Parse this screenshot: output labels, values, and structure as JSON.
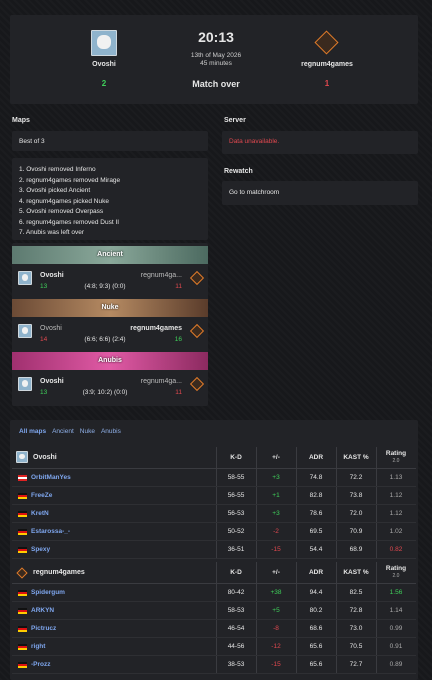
{
  "header": {
    "team1": "Ovoshi",
    "score1": "2",
    "time": "20:13",
    "date": "13th of May 2026",
    "duration": "45 minutes",
    "status": "Match over",
    "team2": "regnum4games",
    "score2": "1"
  },
  "maps": {
    "title": "Maps",
    "best_of": "Best of 3",
    "veto": [
      "1. Ovoshi removed Inferno",
      "2. regnum4games removed Mirage",
      "3. Ovoshi picked Ancient",
      "4. regnum4games picked Nuke",
      "5. Ovoshi removed Overpass",
      "6. regnum4games removed Dust II",
      "7. Anubis was left over"
    ],
    "results": [
      {
        "map": "Ancient",
        "team1": "Ovoshi",
        "score1": "13",
        "detail": "(4:8; 9:3) (0:0)",
        "team2": "regnum4ga...",
        "score2": "11"
      },
      {
        "map": "Nuke",
        "team1": "Ovoshi",
        "score1": "14",
        "detail": "(6:6; 6:6) (2:4)",
        "team2": "regnum4games",
        "score2": "16"
      },
      {
        "map": "Anubis",
        "team1": "Ovoshi",
        "score1": "13",
        "detail": "(3:9; 10:2) (0:0)",
        "team2": "regnum4ga...",
        "score2": "11"
      }
    ]
  },
  "server": {
    "title": "Server",
    "message": "Data unavailable."
  },
  "rewatch": {
    "title": "Rewatch",
    "link": "Go to matchroom"
  },
  "stats": {
    "tabs": [
      "All maps",
      "Ancient",
      "Nuke",
      "Anubis"
    ],
    "columns": [
      "K-D",
      "+/-",
      "ADR",
      "KAST %"
    ],
    "rating_label": "Rating",
    "rating_version": "2.0",
    "teams": [
      {
        "name": "Ovoshi",
        "players": [
          [
            "OrbitManYes",
            "58-55",
            "+3",
            "74.8",
            "72.2",
            "1.13"
          ],
          [
            "FreeZe",
            "56-55",
            "+1",
            "82.8",
            "73.8",
            "1.12"
          ],
          [
            "KretN",
            "56-53",
            "+3",
            "78.6",
            "72.0",
            "1.12"
          ],
          [
            "Estarossa-_-",
            "50-52",
            "-2",
            "69.5",
            "70.9",
            "1.02"
          ],
          [
            "Spexy",
            "36-51",
            "-15",
            "54.4",
            "68.9",
            "0.82"
          ]
        ]
      },
      {
        "name": "regnum4games",
        "players": [
          [
            "Spidergum",
            "80-42",
            "+38",
            "94.4",
            "82.5",
            "1.56"
          ],
          [
            "ARKYN",
            "58-53",
            "+5",
            "80.2",
            "72.8",
            "1.14"
          ],
          [
            "Pictrucz",
            "46-54",
            "-8",
            "68.6",
            "73.0",
            "0.99"
          ],
          [
            "right",
            "44-56",
            "-12",
            "65.6",
            "70.5",
            "0.91"
          ],
          [
            "-Prozz",
            "38-53",
            "-15",
            "65.6",
            "72.7",
            "0.89"
          ]
        ]
      }
    ]
  }
}
